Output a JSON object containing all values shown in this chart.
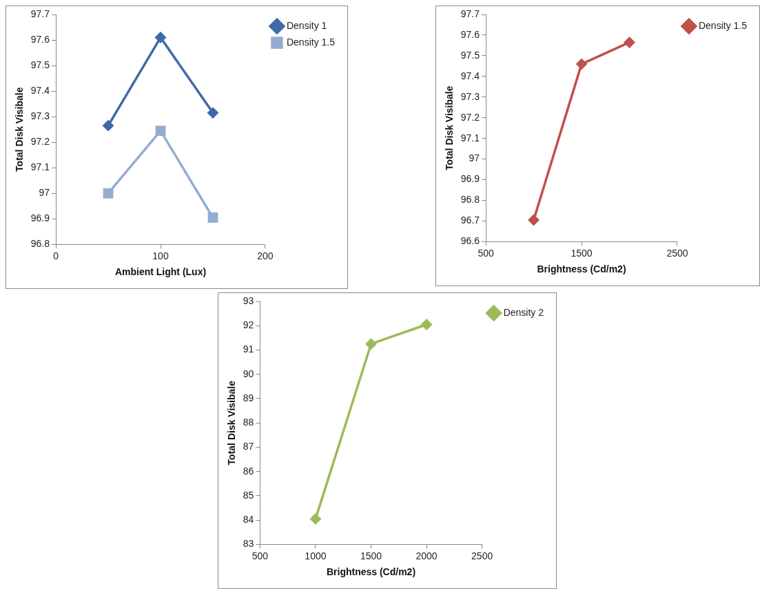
{
  "chart_data": [
    {
      "type": "line",
      "xlabel": "Ambient Light (Lux)",
      "ylabel": "Total Disk Visibale",
      "xlim": [
        0,
        200
      ],
      "xticks": [
        0,
        100,
        200
      ],
      "ylim": [
        96.8,
        97.7
      ],
      "yticks": [
        96.8,
        96.9,
        97,
        97.1,
        97.2,
        97.3,
        97.4,
        97.5,
        97.6,
        97.7
      ],
      "grid": false,
      "legend": "top right",
      "x": [
        50,
        100,
        150
      ],
      "series": [
        {
          "name": "Density 1",
          "color": "#3f6aa8",
          "marker": "diamond",
          "values": [
            97.265,
            97.61,
            97.315
          ]
        },
        {
          "name": "Density 1.5",
          "color": "#95acd0",
          "marker": "square",
          "values": [
            97.0,
            97.245,
            96.905
          ]
        }
      ]
    },
    {
      "type": "line",
      "xlabel": "Brightness (Cd/m2)",
      "ylabel": "Total Disk Visibale",
      "xlim": [
        500,
        2500
      ],
      "xticks": [
        500,
        1500,
        2500
      ],
      "ylim": [
        96.6,
        97.7
      ],
      "yticks": [
        96.6,
        96.7,
        96.8,
        96.9,
        97,
        97.1,
        97.2,
        97.3,
        97.4,
        97.5,
        97.6,
        97.7
      ],
      "grid": false,
      "legend": "top right",
      "x": [
        1000,
        1500,
        2000
      ],
      "series": [
        {
          "name": "Density 1.5",
          "color": "#c0504d",
          "marker": "diamond",
          "values": [
            96.705,
            97.46,
            97.565
          ]
        }
      ]
    },
    {
      "type": "line",
      "xlabel": "Brightness (Cd/m2)",
      "ylabel": "Total Disk Visibale",
      "xlim": [
        500,
        2500
      ],
      "xticks": [
        500,
        1000,
        1500,
        2000,
        2500
      ],
      "ylim": [
        83,
        93
      ],
      "yticks": [
        83,
        84,
        85,
        86,
        87,
        88,
        89,
        90,
        91,
        92,
        93
      ],
      "grid": false,
      "legend": "top right",
      "x": [
        1000,
        1500,
        2000
      ],
      "series": [
        {
          "name": "Density 2",
          "color": "#9bbb59",
          "marker": "diamond",
          "values": [
            84.05,
            91.25,
            92.05
          ]
        }
      ]
    }
  ]
}
